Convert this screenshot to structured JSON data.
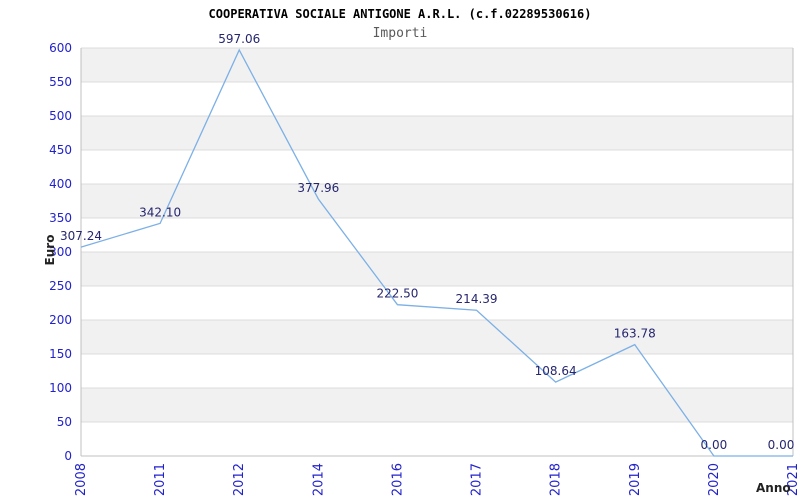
{
  "chart_data": {
    "type": "line",
    "title": "COOPERATIVA SOCIALE ANTIGONE A.R.L. (c.f.02289530616)",
    "subtitle": "Importi",
    "xlabel": "Anno",
    "ylabel": "Euro",
    "x_categories": [
      "2008",
      "2011",
      "2012",
      "2014",
      "2016",
      "2017",
      "2018",
      "2019",
      "2020",
      "2021"
    ],
    "series": [
      {
        "name": "Importi",
        "values": [
          307.24,
          342.1,
          597.06,
          377.96,
          222.5,
          214.39,
          108.64,
          163.78,
          0.0,
          0.0
        ],
        "point_labels": [
          "307.24",
          "342.10",
          "597.06",
          "377.96",
          "222.50",
          "214.39",
          "108.64",
          "163.78",
          "0.00",
          "0.00"
        ]
      }
    ],
    "ylim": [
      0,
      600
    ],
    "ytick_step": 50,
    "ytick_labels": [
      "0",
      "50",
      "100",
      "150",
      "200",
      "250",
      "300",
      "350",
      "400",
      "450",
      "500",
      "550",
      "600"
    ],
    "grid": true,
    "background_bands": "alternating horizontal 50-unit bands, gray below each 100 multiple",
    "legend_position": "none",
    "markers": "none"
  },
  "style": {
    "line_color": "#7cb0e6",
    "tick_label_color": "#2222cc",
    "point_label_color": "#262670",
    "band_color": "#f1f1f1",
    "grid_color": "#dcdcdc",
    "border_color": "#c0c0c0",
    "title_color": "#000000",
    "subtitle_color": "#5a5a5a",
    "axis_title_color": "#222222",
    "background_color": "#ffffff"
  }
}
